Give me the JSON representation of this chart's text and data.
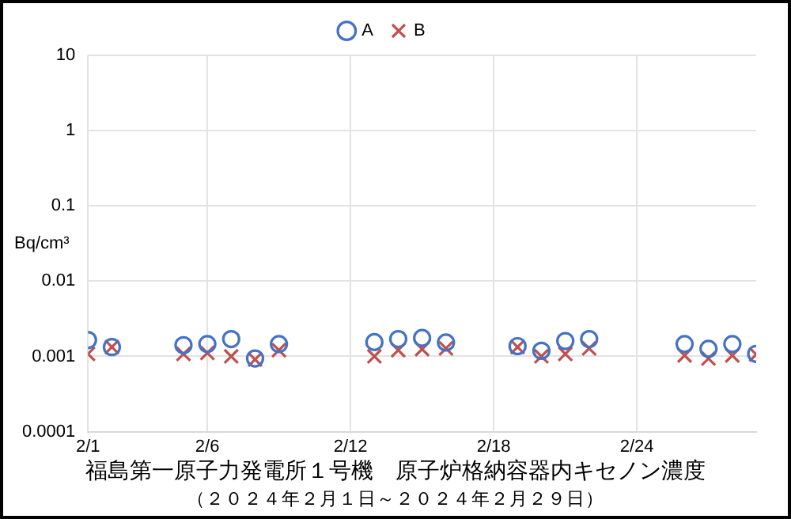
{
  "chart_data": {
    "type": "scatter",
    "title": "福島第一原子力発電所１号機　原子炉格納容器内キセノン濃度",
    "subtitle": "（２０２４年２月１日～２０２４年２月２９日）",
    "ylabel": "Bq/cm³",
    "x": [
      "--02-01",
      "--02-02",
      "--02-05",
      "--02-06",
      "--02-07",
      "--02-08",
      "--02-09",
      "--02-13",
      "--02-14",
      "--02-15",
      "--02-16",
      "--02-19",
      "--02-20",
      "--02-21",
      "--02-22",
      "--02-26",
      "--02-27",
      "--02-28",
      "--02-29"
    ],
    "series": [
      {
        "name": "A",
        "color": "#4472c4",
        "marker": "circle",
        "values": [
          0.00165,
          0.00133,
          0.00141,
          0.00146,
          0.0017,
          0.00094,
          0.00146,
          0.00155,
          0.0017,
          0.00176,
          0.00153,
          0.00137,
          0.00119,
          0.0016,
          0.0017,
          0.00146,
          0.00126,
          0.00146,
          0.00108
        ]
      },
      {
        "name": "B",
        "color": "#c0504d",
        "marker": "cross",
        "values": [
          0.00108,
          0.00133,
          0.00108,
          0.00111,
          0.001,
          0.00091,
          0.00121,
          0.001,
          0.00121,
          0.00125,
          0.00128,
          0.00133,
          0.001,
          0.00108,
          0.00128,
          0.00103,
          0.00094,
          0.00103,
          0.00106
        ]
      }
    ],
    "log": "y",
    "ylim": [
      0.0001,
      10
    ],
    "yticks": [
      0.0001,
      0.001,
      0.01,
      0.1,
      1,
      10
    ],
    "xlim": [
      "--02-01",
      "--02-29"
    ],
    "xticks": [
      {
        "value": "--02-01",
        "label": "2/1"
      },
      {
        "value": "--02-06",
        "label": "2/6"
      },
      {
        "value": "--02-12",
        "label": "2/12"
      },
      {
        "value": "--02-18",
        "label": "2/18"
      },
      {
        "value": "--02-24",
        "label": "2/24"
      }
    ],
    "grid": true,
    "legend": "top"
  }
}
